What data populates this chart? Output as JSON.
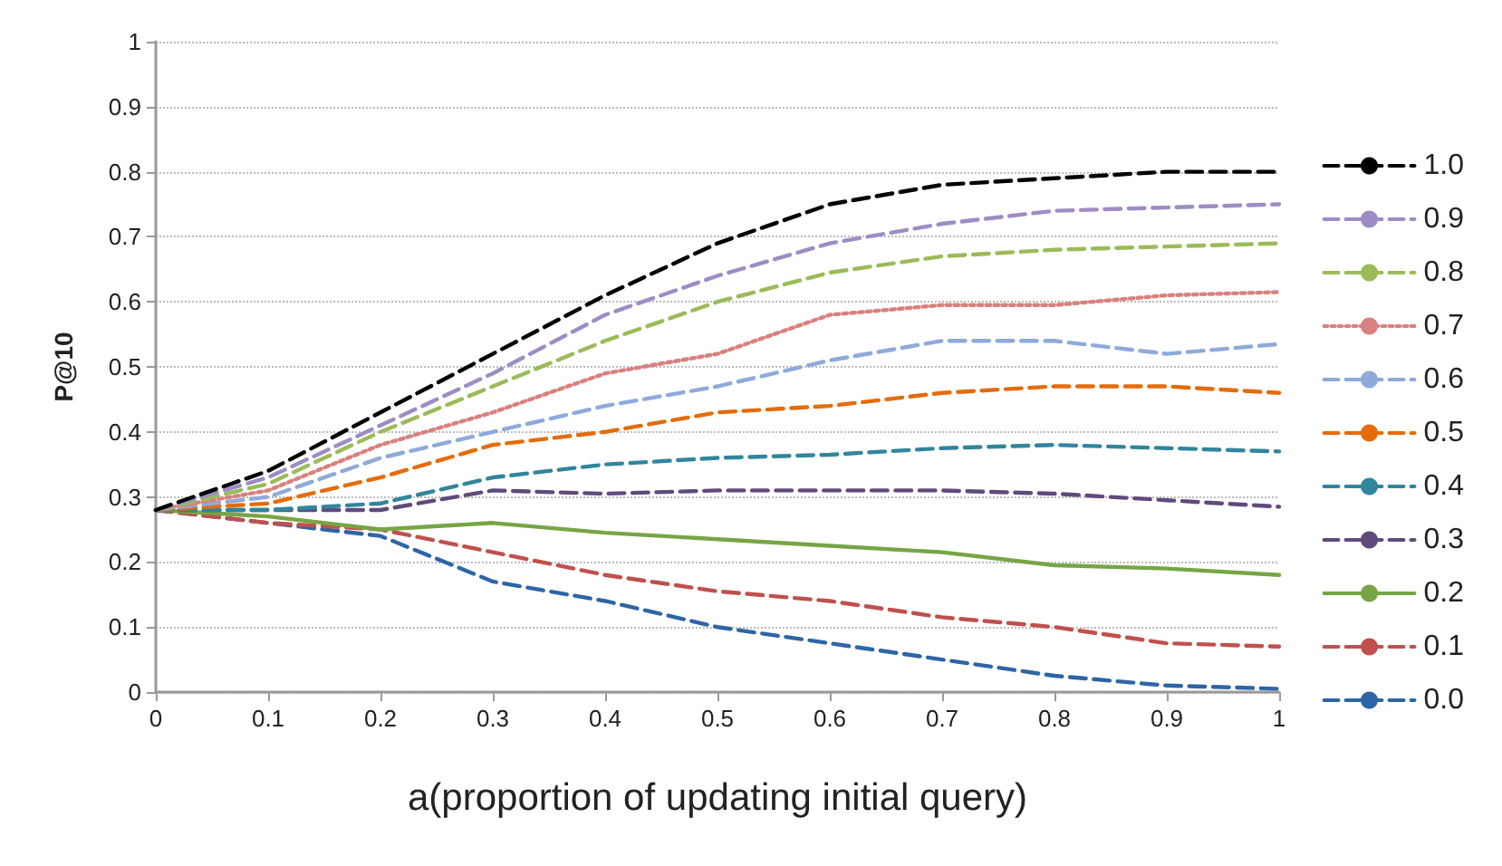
{
  "chart_data": {
    "type": "line",
    "xlabel": "a(proportion of updating initial query)",
    "ylabel": "P@10",
    "x": [
      0,
      0.1,
      0.2,
      0.3,
      0.4,
      0.5,
      0.6,
      0.7,
      0.8,
      0.9,
      1
    ],
    "xlim": [
      0,
      1
    ],
    "xticks": [
      0,
      0.1,
      0.2,
      0.3,
      0.4,
      0.5,
      0.6,
      0.7,
      0.8,
      0.9,
      1
    ],
    "ylim": [
      0,
      1
    ],
    "yticks": [
      0,
      0.1,
      0.2,
      0.3,
      0.4,
      0.5,
      0.6,
      0.7,
      0.8,
      0.9,
      1
    ],
    "grid": "y",
    "legend": "right",
    "marker": "none",
    "series": [
      {
        "name": "1.0",
        "color": "#000000",
        "line_style": "dashed",
        "values": [
          0.28,
          0.34,
          0.43,
          0.52,
          0.61,
          0.69,
          0.75,
          0.78,
          0.79,
          0.8,
          0.8
        ]
      },
      {
        "name": "0.9",
        "color": "#9e8cc5",
        "line_style": "dashed",
        "values": [
          0.28,
          0.33,
          0.41,
          0.49,
          0.58,
          0.64,
          0.69,
          0.72,
          0.74,
          0.745,
          0.75
        ]
      },
      {
        "name": "0.8",
        "color": "#9bbb59",
        "line_style": "dashed",
        "values": [
          0.28,
          0.32,
          0.4,
          0.47,
          0.54,
          0.6,
          0.645,
          0.67,
          0.68,
          0.685,
          0.69
        ]
      },
      {
        "name": "0.7",
        "color": "#d9817e",
        "line_style": "dotted",
        "values": [
          0.28,
          0.31,
          0.38,
          0.43,
          0.49,
          0.52,
          0.58,
          0.595,
          0.595,
          0.61,
          0.615
        ]
      },
      {
        "name": "0.6",
        "color": "#8eaadb",
        "line_style": "dashed",
        "values": [
          0.28,
          0.3,
          0.36,
          0.4,
          0.44,
          0.47,
          0.51,
          0.54,
          0.54,
          0.52,
          0.535
        ]
      },
      {
        "name": "0.5",
        "color": "#e46c0a",
        "line_style": "dashed",
        "values": [
          0.28,
          0.29,
          0.33,
          0.38,
          0.4,
          0.43,
          0.44,
          0.46,
          0.47,
          0.47,
          0.46
        ]
      },
      {
        "name": "0.4",
        "color": "#31859c",
        "line_style": "dashed",
        "values": [
          0.28,
          0.28,
          0.29,
          0.33,
          0.35,
          0.36,
          0.365,
          0.375,
          0.38,
          0.375,
          0.37
        ]
      },
      {
        "name": "0.3",
        "color": "#604a7b",
        "line_style": "dashed",
        "values": [
          0.28,
          0.28,
          0.28,
          0.31,
          0.305,
          0.31,
          0.31,
          0.31,
          0.305,
          0.295,
          0.285
        ]
      },
      {
        "name": "0.2",
        "color": "#77a545",
        "line_style": "solid",
        "values": [
          0.28,
          0.27,
          0.25,
          0.26,
          0.245,
          0.235,
          0.225,
          0.215,
          0.195,
          0.19,
          0.18
        ]
      },
      {
        "name": "0.1",
        "color": "#c0504d",
        "line_style": "dashed",
        "values": [
          0.28,
          0.26,
          0.25,
          0.215,
          0.18,
          0.155,
          0.14,
          0.115,
          0.1,
          0.075,
          0.07
        ]
      },
      {
        "name": "0.0",
        "color": "#2e65a6",
        "line_style": "dashed",
        "values": [
          0.28,
          0.26,
          0.24,
          0.17,
          0.14,
          0.1,
          0.075,
          0.05,
          0.025,
          0.01,
          0.005
        ]
      }
    ]
  }
}
